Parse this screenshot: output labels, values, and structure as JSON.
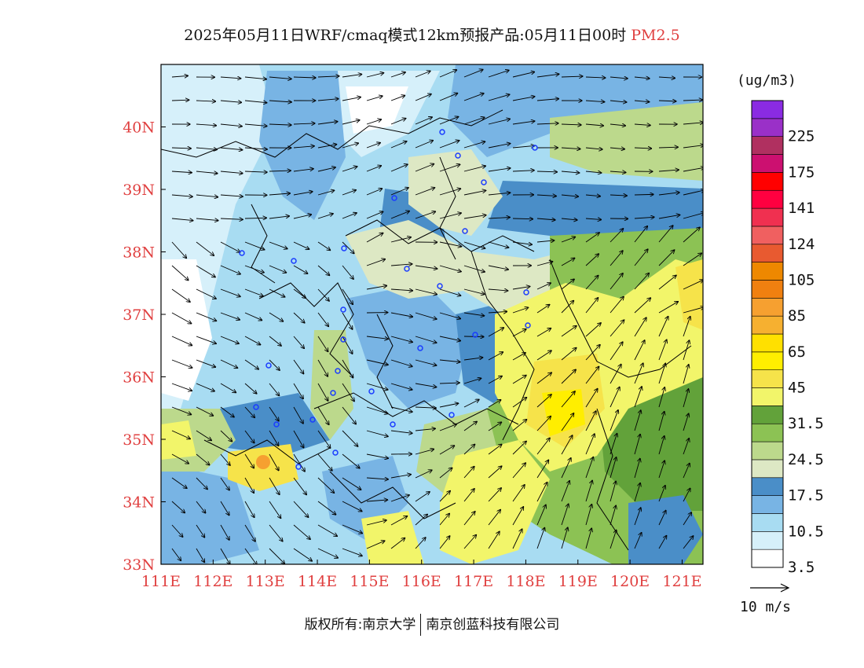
{
  "title": {
    "main": "2025年05月11日WRF/cmaq模式12km预报产品:05月11日00时",
    "pollutant": "PM2.5"
  },
  "colors": {
    "axis_label": "#e04040",
    "frame": "#000000"
  },
  "axes": {
    "x_ticks": [
      "111E",
      "112E",
      "113E",
      "114E",
      "115E",
      "116E",
      "117E",
      "118E",
      "119E",
      "120E",
      "121E"
    ],
    "y_ticks": [
      "33N",
      "34N",
      "35N",
      "36N",
      "37N",
      "38N",
      "39N",
      "40N"
    ],
    "lon_range": [
      111,
      121.4
    ],
    "lat_range": [
      33,
      41
    ]
  },
  "legend": {
    "unit": "(ug/m3)",
    "bins": [
      {
        "color": "#ffffff",
        "label": "3.5"
      },
      {
        "color": "#d6f0fa",
        "label": ""
      },
      {
        "color": "#a8dcf2",
        "label": "10.5"
      },
      {
        "color": "#78b4e4",
        "label": ""
      },
      {
        "color": "#4a8ec8",
        "label": "17.5"
      },
      {
        "color": "#dde8c4",
        "label": ""
      },
      {
        "color": "#bcd98c",
        "label": "24.5"
      },
      {
        "color": "#8cc254",
        "label": ""
      },
      {
        "color": "#62a23a",
        "label": "31.5"
      },
      {
        "color": "#f2f56a",
        "label": ""
      },
      {
        "color": "#f6e34a",
        "label": "45"
      },
      {
        "color": "#ffee00",
        "label": ""
      },
      {
        "color": "#ffe000",
        "label": "65"
      },
      {
        "color": "#f6b030",
        "label": ""
      },
      {
        "color": "#f6a030",
        "label": "85"
      },
      {
        "color": "#f08010",
        "label": ""
      },
      {
        "color": "#ee8800",
        "label": "105"
      },
      {
        "color": "#e85a30",
        "label": ""
      },
      {
        "color": "#f06060",
        "label": "124"
      },
      {
        "color": "#f03050",
        "label": ""
      },
      {
        "color": "#ff0040",
        "label": "141"
      },
      {
        "color": "#ff0000",
        "label": ""
      },
      {
        "color": "#cc1070",
        "label": "175"
      },
      {
        "color": "#b03060",
        "label": ""
      },
      {
        "color": "#9a30c8",
        "label": "225"
      },
      {
        "color": "#8a2be2",
        "label": ""
      }
    ]
  },
  "wind_scale": {
    "label": "10 m/s"
  },
  "copyright": {
    "left": "版权所有:南京大学",
    "right": "南京创蓝科技有限公司"
  }
}
